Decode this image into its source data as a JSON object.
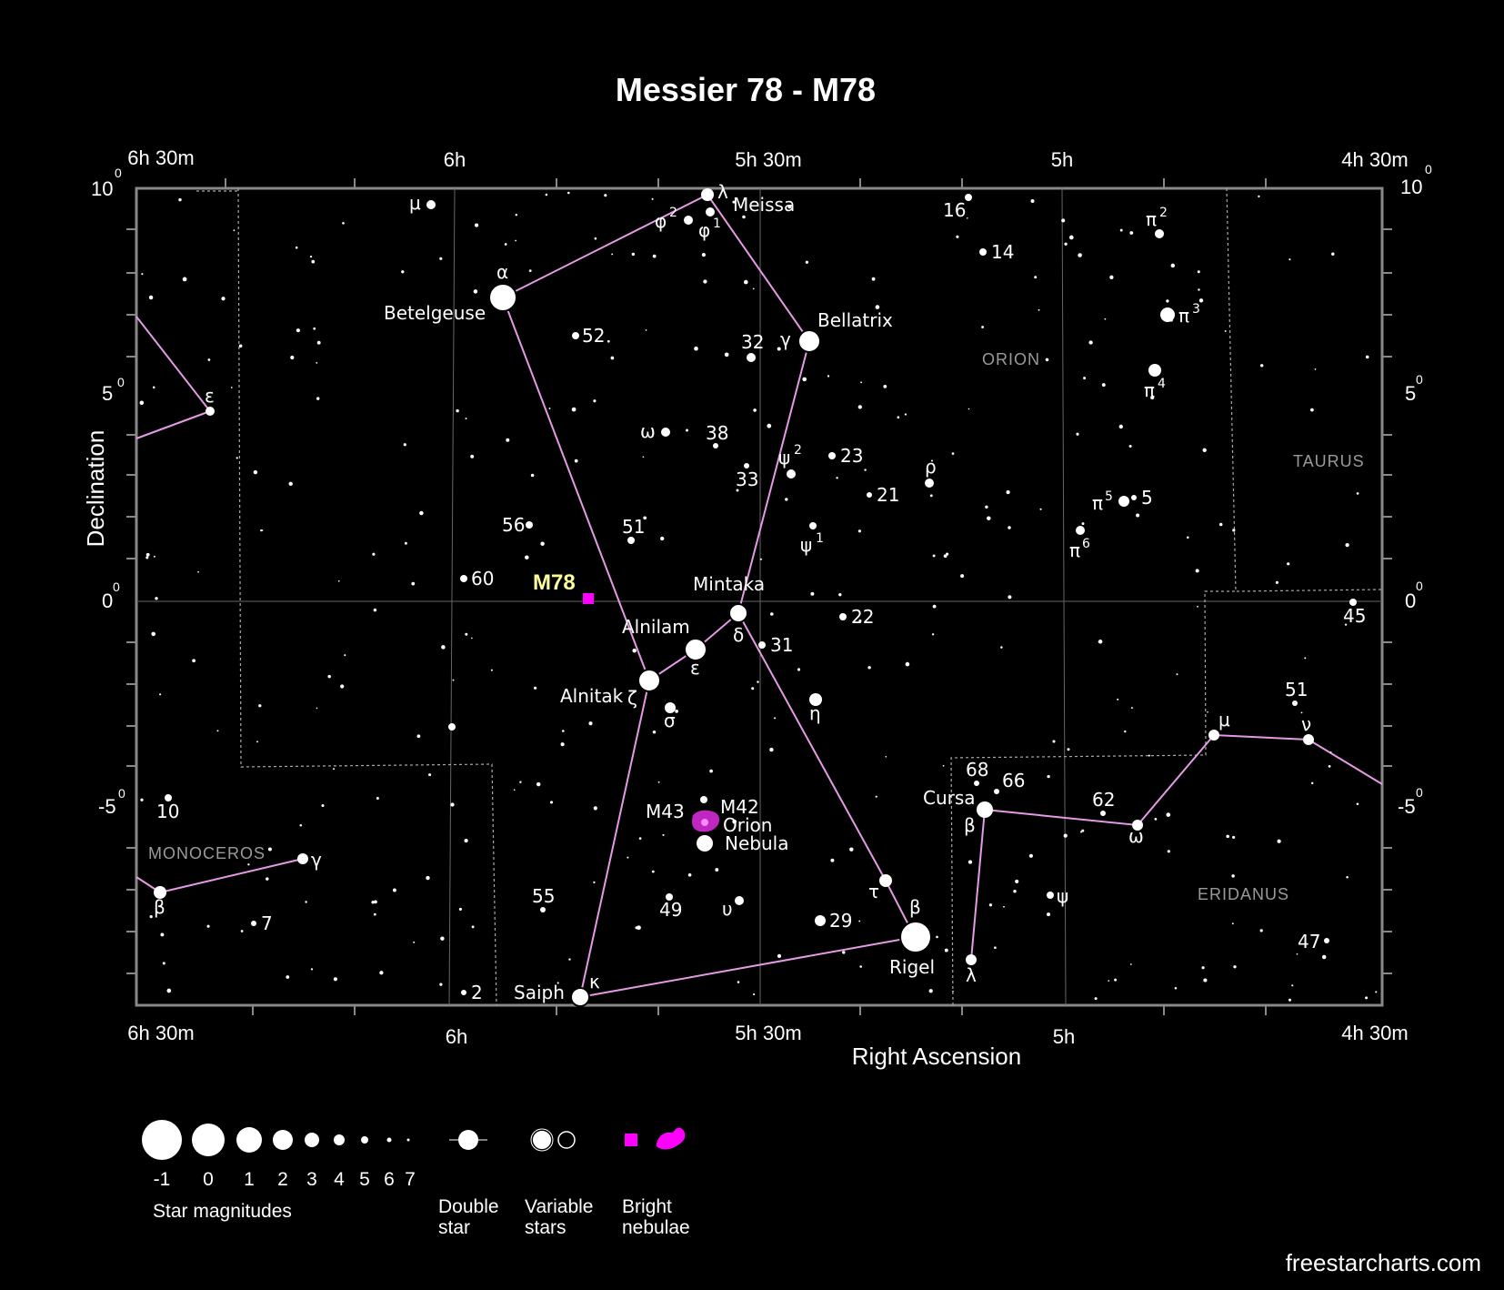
{
  "title": "Messier 78 - M78",
  "axes": {
    "x_title": "Right Ascension",
    "y_title": "Declination",
    "ra_ticks": [
      "6h 30m",
      "6h",
      "5h 30m",
      "5h",
      "4h 30m"
    ],
    "dec_ticks": [
      "10",
      "5",
      "0",
      "-5"
    ],
    "degree_mark": "0"
  },
  "constellations": [
    "ORION",
    "TAURUS",
    "MONOCEROS",
    "ERIDANUS"
  ],
  "target": {
    "label": "M78",
    "color": "#ff00ff"
  },
  "star_labels": [
    "μ",
    "λ",
    "Meissa",
    "φ",
    "2",
    "φ",
    "1",
    "16",
    "14",
    "π",
    "2",
    "α",
    "Betelgeuse",
    "52",
    "32",
    "γ",
    "Bellatrix",
    "π",
    "3",
    "π",
    "4",
    "ε",
    "ω",
    "38",
    "ψ",
    "2",
    "23",
    "33",
    "21",
    "ρ",
    "π",
    "5",
    "5",
    "56",
    "51",
    "ψ",
    "1",
    "π",
    "6",
    "60",
    "Mintaka",
    "22",
    "Alnilam",
    "δ",
    "31",
    "45",
    "ε",
    "Alnitak",
    "ζ",
    "σ",
    "η",
    "51",
    "μ",
    "ν",
    "68",
    "66",
    "M43",
    "M42",
    "Orion",
    "Nebula",
    "Cursa",
    "β",
    "62",
    "ω",
    "10",
    "γ",
    "β",
    "55",
    "49",
    "υ",
    "τ",
    "β",
    "29",
    "ψ",
    "Rigel",
    "λ",
    "7",
    "2",
    "Saiph",
    "κ",
    "47"
  ],
  "legend": {
    "magnitudes": [
      "-1",
      "0",
      "1",
      "2",
      "3",
      "4",
      "5",
      "6",
      "7"
    ],
    "star_magnitudes": "Star magnitudes",
    "double_star": [
      "Double",
      "star"
    ],
    "variable_stars": [
      "Variable",
      "stars"
    ],
    "bright_nebulae": [
      "Bright",
      "nebulae"
    ]
  },
  "credit": "freestarcharts.com",
  "colors": {
    "background": "#000000",
    "constellation_lines": "#e59ae5",
    "nebula": "#ff00ff",
    "m78_label": "#ffff99",
    "frame": "#888888"
  }
}
